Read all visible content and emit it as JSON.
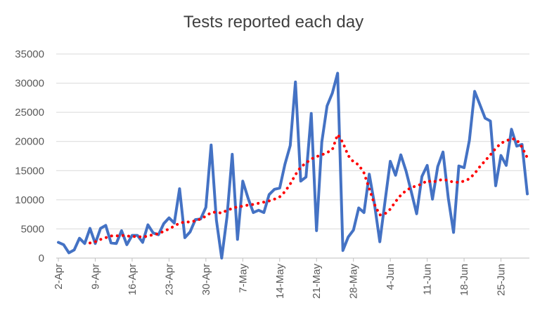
{
  "chart_data": {
    "type": "line",
    "title": "Tests reported each day",
    "xlabel": "",
    "ylabel": "",
    "ylim": [
      0,
      35000
    ],
    "yticks": [
      0,
      5000,
      10000,
      15000,
      20000,
      25000,
      30000,
      35000
    ],
    "ytick_labels": [
      "0",
      "5000",
      "10000",
      "15000",
      "20000",
      "25000",
      "30000",
      "35000"
    ],
    "x_start": "2-Apr",
    "x_end": "30-Jun",
    "xtick_labels": [
      "2-Apr",
      "9-Apr",
      "16-Apr",
      "23-Apr",
      "30-Apr",
      "7-May",
      "14-May",
      "21-May",
      "28-May",
      "4-Jun",
      "11-Jun",
      "18-Jun",
      "25-Jun"
    ],
    "grid": "horizontal",
    "legend": "none",
    "colors": {
      "daily": "#4472C4",
      "trend": "#FF0000",
      "grid": "#D9D9D9",
      "axis": "#BFBFBF"
    },
    "series": [
      {
        "style": "solid",
        "values": [
          2700,
          2300,
          900,
          1400,
          3400,
          2500,
          5100,
          2500,
          5100,
          5600,
          2600,
          2500,
          4700,
          2300,
          3900,
          3900,
          2700,
          5700,
          4300,
          4000,
          5900,
          6900,
          6000,
          11900,
          3500,
          4500,
          6600,
          6700,
          8700,
          19400,
          6500,
          0,
          7000,
          17800,
          3200,
          13200,
          10300,
          7800,
          8200,
          7800,
          10900,
          11800,
          12000,
          16100,
          19300,
          30200,
          13200,
          13900,
          24800,
          4700,
          19900,
          26100,
          28300,
          31700,
          1300,
          3600,
          4800,
          8600,
          7800,
          14400,
          9200,
          2800,
          9800,
          16600,
          14200,
          17700,
          14900,
          11300,
          7600,
          14000,
          15900,
          10100,
          15700,
          18200,
          10300,
          4400,
          15800,
          15500,
          20200,
          28600,
          26300,
          24000,
          23500,
          12400,
          17600,
          15900,
          22100,
          19200,
          19500,
          11000
        ]
      },
      {
        "style": "dotted",
        "values": [
          null,
          null,
          null,
          null,
          null,
          null,
          2600,
          2800,
          3200,
          3500,
          3800,
          3800,
          3900,
          3800,
          3700,
          3700,
          3600,
          3800,
          4000,
          4200,
          4600,
          5000,
          5500,
          6000,
          6200,
          6200,
          6400,
          6700,
          7200,
          7800,
          7900,
          7700,
          8200,
          8500,
          8800,
          8900,
          9100,
          9200,
          9400,
          9600,
          9800,
          10100,
          10500,
          11400,
          12700,
          14300,
          15600,
          16300,
          17000,
          17400,
          17700,
          18100,
          18600,
          21200,
          19800,
          17600,
          16500,
          16000,
          14600,
          11900,
          9200,
          7400,
          7600,
          8400,
          9700,
          10800,
          11600,
          12100,
          12400,
          12700,
          13300,
          13000,
          13300,
          13500,
          13300,
          13000,
          13000,
          13200,
          13600,
          14500,
          15700,
          16700,
          17700,
          18800,
          19700,
          20100,
          20500,
          20300,
          19000,
          17200
        ]
      }
    ]
  }
}
